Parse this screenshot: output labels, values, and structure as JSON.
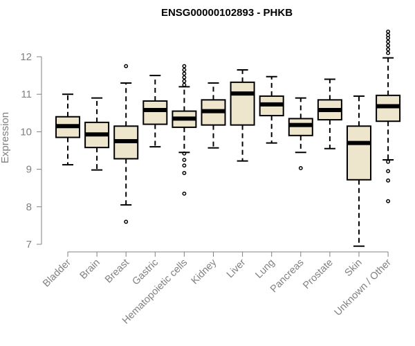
{
  "chart_data": {
    "type": "boxplot",
    "title": "ENSG00000102893 - PHKB",
    "xlabel": "",
    "ylabel": "Expression",
    "ylim": [
      7,
      12
    ],
    "yticks": [
      7,
      8,
      9,
      10,
      11,
      12
    ],
    "colors": {
      "box_fill": "#ede6cd",
      "stroke": "#000000",
      "axis": "#808080"
    },
    "categories": [
      {
        "name": "Bladder",
        "whisker_low": 9.12,
        "q1": 9.85,
        "median": 10.15,
        "q3": 10.4,
        "whisker_high": 11.0,
        "outliers": []
      },
      {
        "name": "Brain",
        "whisker_low": 8.98,
        "q1": 9.58,
        "median": 9.93,
        "q3": 10.25,
        "whisker_high": 10.9,
        "outliers": []
      },
      {
        "name": "Breast",
        "whisker_low": 8.05,
        "q1": 9.28,
        "median": 9.75,
        "q3": 10.15,
        "whisker_high": 11.3,
        "outliers": [
          7.6,
          11.75
        ]
      },
      {
        "name": "Gastric",
        "whisker_low": 9.6,
        "q1": 10.2,
        "median": 10.58,
        "q3": 10.82,
        "whisker_high": 11.5,
        "outliers": []
      },
      {
        "name": "Hematopoietic cells",
        "whisker_low": 9.45,
        "q1": 10.12,
        "median": 10.35,
        "q3": 10.55,
        "whisker_high": 11.2,
        "outliers": [
          8.35,
          8.9,
          9.1,
          9.25,
          9.42,
          11.25,
          11.35,
          11.45,
          11.55,
          11.65,
          11.75
        ]
      },
      {
        "name": "Kidney",
        "whisker_low": 9.57,
        "q1": 10.18,
        "median": 10.55,
        "q3": 10.85,
        "whisker_high": 11.3,
        "outliers": []
      },
      {
        "name": "Liver",
        "whisker_low": 9.22,
        "q1": 10.18,
        "median": 11.02,
        "q3": 11.32,
        "whisker_high": 11.65,
        "outliers": []
      },
      {
        "name": "Lung",
        "whisker_low": 9.7,
        "q1": 10.43,
        "median": 10.73,
        "q3": 10.95,
        "whisker_high": 11.47,
        "outliers": []
      },
      {
        "name": "Pancreas",
        "whisker_low": 9.45,
        "q1": 9.9,
        "median": 10.18,
        "q3": 10.35,
        "whisker_high": 10.9,
        "outliers": [
          9.03
        ]
      },
      {
        "name": "Prostate",
        "whisker_low": 9.55,
        "q1": 10.32,
        "median": 10.58,
        "q3": 10.85,
        "whisker_high": 11.4,
        "outliers": []
      },
      {
        "name": "Skin",
        "whisker_low": 6.95,
        "q1": 8.72,
        "median": 9.7,
        "q3": 10.15,
        "whisker_high": 10.95,
        "outliers": []
      },
      {
        "name": "Unknown / Other",
        "whisker_low": 9.25,
        "q1": 10.28,
        "median": 10.68,
        "q3": 10.97,
        "whisker_high": 11.97,
        "outliers": [
          8.15,
          8.7,
          8.95,
          9.2,
          12.1,
          12.2,
          12.3,
          12.4,
          12.5,
          12.58,
          12.67
        ]
      }
    ]
  }
}
